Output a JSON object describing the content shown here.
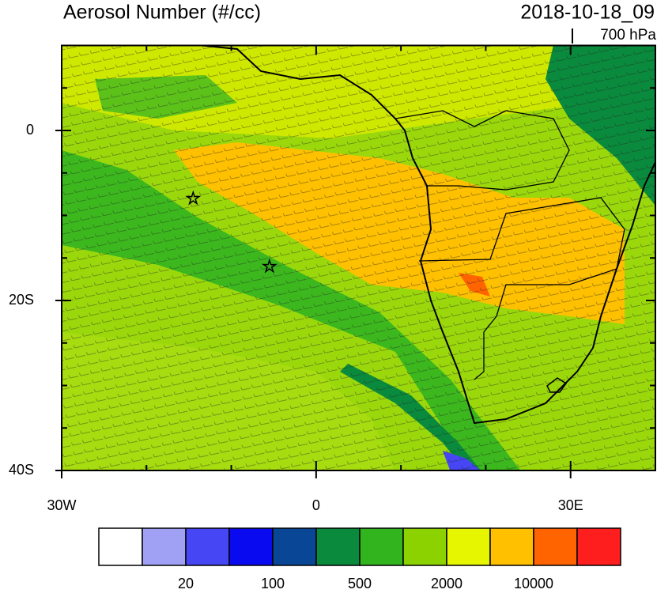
{
  "header": {
    "title": "Aerosol Number (#/cc)",
    "time": "2018-10-18_09",
    "level": "700 hPa"
  },
  "map": {
    "xlim": [
      -30,
      40
    ],
    "ylim": [
      -40,
      10
    ],
    "xticks": [
      {
        "value": -30,
        "label": "30W"
      },
      0,
      {
        "value": 30,
        "label": "30E"
      }
    ],
    "xminorticks": [
      -20,
      -10,
      10,
      20,
      40
    ],
    "yticks": [
      {
        "value": -40,
        "label": "40S"
      },
      {
        "value": -20,
        "label": "20S"
      },
      0
    ],
    "yminorticks": [
      -35,
      -30,
      -25,
      -15,
      -10,
      -5,
      5,
      10
    ],
    "markers": [
      {
        "lon": -14.5,
        "lat": -8
      },
      {
        "lon": -5.5,
        "lat": -16
      }
    ]
  },
  "colorbar": {
    "colors": [
      "#ffffff",
      "#a0a0f5",
      "#4646f5",
      "#0a0af0",
      "#0a4696",
      "#0a8a3c",
      "#32b41e",
      "#8cd200",
      "#e6f500",
      "#ffc000",
      "#ff6400",
      "#ff1e1e"
    ],
    "levels": [
      null,
      20,
      null,
      100,
      null,
      500,
      null,
      2000,
      null,
      10000,
      null
    ]
  }
}
